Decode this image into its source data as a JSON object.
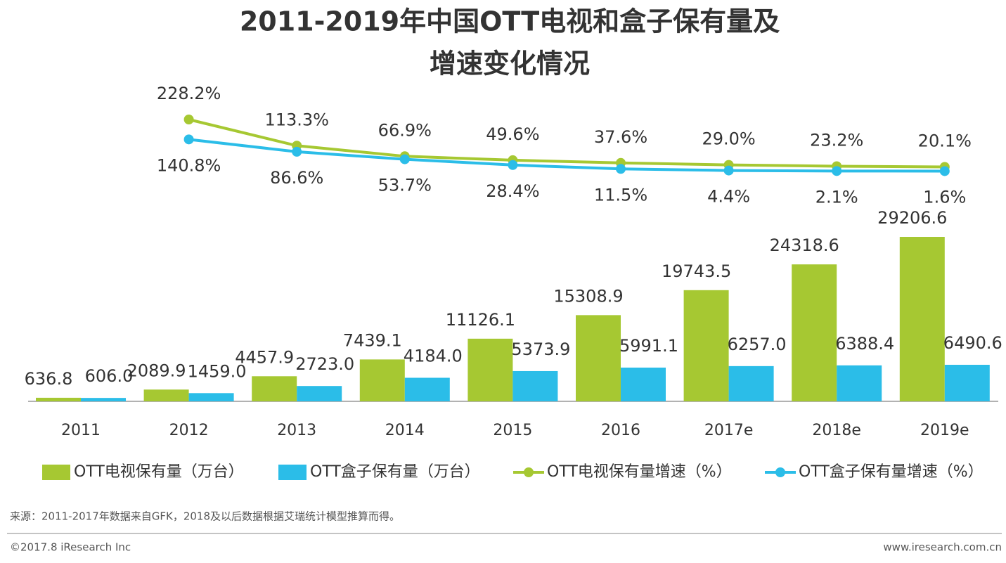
{
  "chart_data": {
    "type": "bar_line",
    "title": [
      "2011-2019年中国OTT电视和盒子保有量及",
      "增速变化情况"
    ],
    "categories": [
      "2011",
      "2012",
      "2013",
      "2014",
      "2015",
      "2016",
      "2017e",
      "2018e",
      "2019e"
    ],
    "series": [
      {
        "name": "OTT电视保有量（万台）",
        "color": "#a6c832",
        "kind": "bar",
        "values": [
          636.8,
          2089.9,
          4457.9,
          7439.1,
          11126.1,
          15308.9,
          19743.5,
          24318.6,
          29206.6
        ],
        "value_labels": [
          "636.8",
          "2089.9",
          "4457.9",
          "7439.1",
          "11126.1",
          "15308.9",
          "19743.5",
          "24318.6",
          "29206.6"
        ]
      },
      {
        "name": "OTT盒子保有量（万台）",
        "color": "#2bbde8",
        "kind": "bar",
        "values": [
          606,
          1459,
          2723,
          4184,
          5373.9,
          5991.1,
          6257,
          6388.4,
          6490.6
        ],
        "value_labels": [
          "606.0",
          "1459.0",
          "2723.0",
          "4184.0",
          "5373.9",
          "5991.1",
          "6257.0",
          "6388.4",
          "6490.6"
        ]
      },
      {
        "name": "OTT电视保有量增速（%）",
        "color": "#a6c832",
        "kind": "line",
        "axis": "y2",
        "values": [
          null,
          228.2,
          113.3,
          66.9,
          49.6,
          37.6,
          29.0,
          23.2,
          20.1
        ],
        "value_labels": [
          null,
          "228.2%",
          "113.3%",
          "66.9%",
          "49.6%",
          "37.6%",
          "29.0%",
          "23.2%",
          "20.1%"
        ]
      },
      {
        "name": "OTT盒子保有量增速（%）",
        "color": "#2bbde8",
        "kind": "line",
        "axis": "y2",
        "values": [
          null,
          140.8,
          86.6,
          53.7,
          28.4,
          11.5,
          4.4,
          2.1,
          1.6
        ],
        "value_labels": [
          null,
          "140.8%",
          "86.6%",
          "53.7%",
          "28.4%",
          "11.5%",
          "4.4%",
          "2.1%",
          "1.6%"
        ]
      }
    ]
  },
  "source": "来源：2011-2017年数据来自GFK，2018及以后数据根据艾瑞统计模型推算而得。",
  "copyright": "©2017.8 iResearch Inc",
  "website": "www.iresearch.com.cn"
}
